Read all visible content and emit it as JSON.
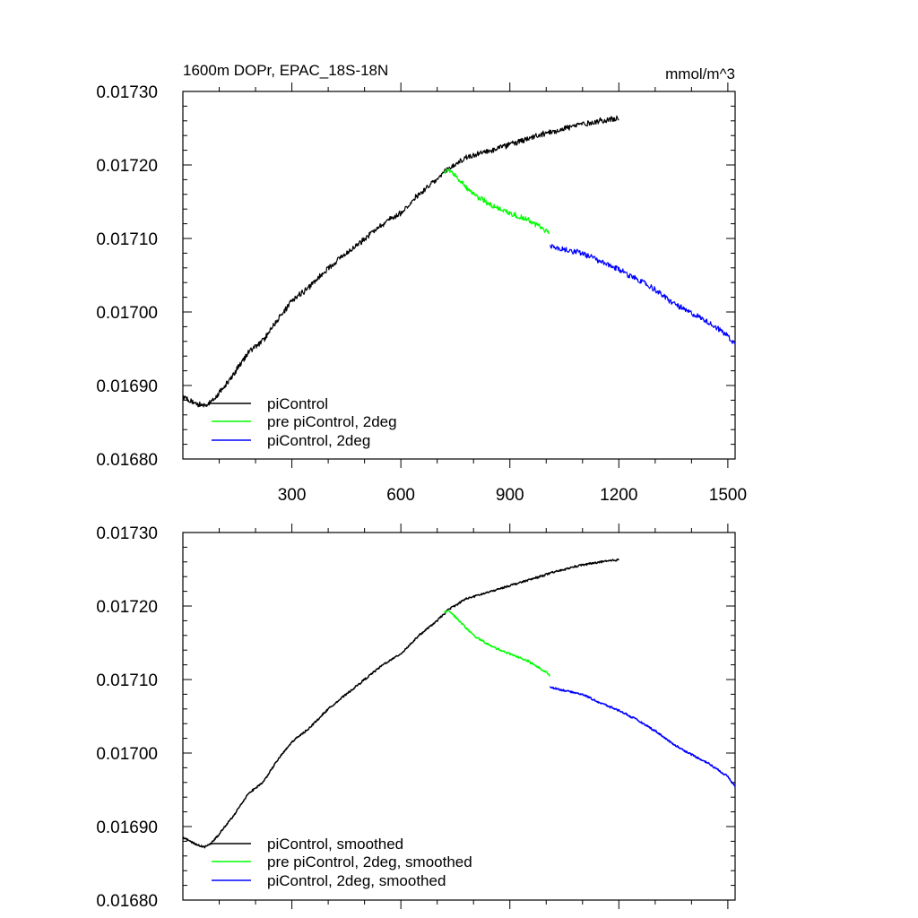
{
  "chart_data": [
    {
      "type": "line",
      "title": "1600m DOPr, EPAC_18S-18N",
      "units_label": "mmol/m^3",
      "xlim": [
        0,
        1520
      ],
      "ylim": [
        0.0168,
        0.0173
      ],
      "x_ticks": [
        300,
        600,
        900,
        1200,
        1500
      ],
      "x_tick_labels": [
        "300",
        "600",
        "900",
        "1200",
        "1500"
      ],
      "y_ticks": [
        0.0168,
        0.0169,
        0.017,
        0.0171,
        0.0172,
        0.0173
      ],
      "y_tick_labels": [
        "0.01680",
        "0.01690",
        "0.01700",
        "0.01710",
        "0.01720",
        "0.01730"
      ],
      "legend_position": "bottom-left",
      "series": [
        {
          "name": "piControl",
          "color": "#000000",
          "noise": 3.5e-06,
          "x": [
            0,
            20,
            40,
            60,
            80,
            100,
            140,
            180,
            220,
            260,
            300,
            350,
            400,
            450,
            500,
            550,
            600,
            650,
            700,
            730,
            780,
            850,
            900,
            950,
            1000,
            1050,
            1100,
            1150,
            1200
          ],
          "y": [
            0.016885,
            0.01688,
            0.016875,
            0.016872,
            0.016878,
            0.01689,
            0.016915,
            0.016945,
            0.01696,
            0.01699,
            0.017015,
            0.017035,
            0.01706,
            0.01708,
            0.0171,
            0.01712,
            0.017135,
            0.01716,
            0.01718,
            0.017195,
            0.01721,
            0.01722,
            0.017228,
            0.017235,
            0.017243,
            0.01725,
            0.017256,
            0.01726,
            0.017263
          ]
        },
        {
          "name": "pre piControl, 2deg",
          "color": "#00ff00",
          "noise": 3.5e-06,
          "x": [
            720,
            730,
            760,
            800,
            850,
            900,
            950,
            1000,
            1010
          ],
          "y": [
            0.017192,
            0.017195,
            0.01718,
            0.01716,
            0.017145,
            0.017135,
            0.017125,
            0.01711,
            0.017105
          ]
        },
        {
          "name": "piControl, 2deg",
          "color": "#0000ff",
          "noise": 3.5e-06,
          "x": [
            1010,
            1050,
            1100,
            1150,
            1200,
            1250,
            1300,
            1350,
            1400,
            1450,
            1500,
            1520
          ],
          "y": [
            0.01709,
            0.017085,
            0.01708,
            0.017068,
            0.017058,
            0.017045,
            0.01703,
            0.017012,
            0.016998,
            0.016985,
            0.016968,
            0.016955
          ]
        }
      ]
    },
    {
      "type": "line",
      "xlim": [
        0,
        1520
      ],
      "ylim": [
        0.0168,
        0.0173
      ],
      "x_ticks": [
        300,
        600,
        900,
        1200,
        1500
      ],
      "y_ticks": [
        0.0168,
        0.0169,
        0.017,
        0.0171,
        0.0172,
        0.0173
      ],
      "y_tick_labels": [
        "0.01680",
        "0.01690",
        "0.01700",
        "0.01710",
        "0.01720",
        "0.01730"
      ],
      "legend_position": "bottom-left",
      "series": [
        {
          "name": "piControl, smoothed",
          "color": "#000000",
          "noise": 1.2e-06,
          "x": [
            0,
            20,
            40,
            60,
            80,
            100,
            140,
            180,
            220,
            260,
            300,
            350,
            400,
            450,
            500,
            550,
            600,
            650,
            700,
            730,
            780,
            850,
            900,
            950,
            1000,
            1050,
            1100,
            1150,
            1200
          ],
          "y": [
            0.016885,
            0.01688,
            0.016875,
            0.016872,
            0.016878,
            0.01689,
            0.016915,
            0.016945,
            0.01696,
            0.01699,
            0.017015,
            0.017035,
            0.01706,
            0.01708,
            0.0171,
            0.01712,
            0.017135,
            0.01716,
            0.01718,
            0.017195,
            0.01721,
            0.01722,
            0.017228,
            0.017235,
            0.017243,
            0.01725,
            0.017256,
            0.01726,
            0.017263
          ]
        },
        {
          "name": "pre piControl, 2deg, smoothed",
          "color": "#00ff00",
          "noise": 1.2e-06,
          "x": [
            720,
            730,
            760,
            800,
            850,
            900,
            950,
            1000,
            1010
          ],
          "y": [
            0.017192,
            0.017195,
            0.01718,
            0.01716,
            0.017145,
            0.017135,
            0.017125,
            0.01711,
            0.017105
          ]
        },
        {
          "name": "piControl, 2deg, smoothed",
          "color": "#0000ff",
          "noise": 1.2e-06,
          "x": [
            1010,
            1050,
            1100,
            1150,
            1200,
            1250,
            1300,
            1350,
            1400,
            1450,
            1500,
            1520
          ],
          "y": [
            0.01709,
            0.017085,
            0.01708,
            0.017068,
            0.017058,
            0.017045,
            0.01703,
            0.017012,
            0.016998,
            0.016985,
            0.016968,
            0.016955
          ]
        }
      ]
    }
  ]
}
